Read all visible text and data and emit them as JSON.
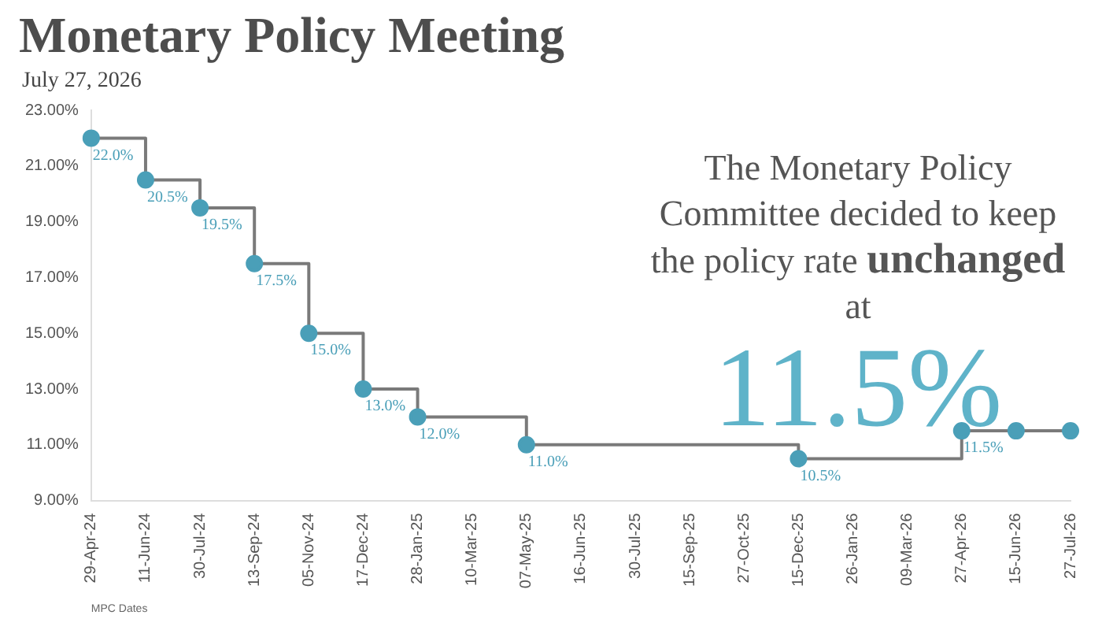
{
  "chart_data": {
    "type": "step",
    "title": "Monetary Policy Meeting",
    "subtitle": "July 27, 2026",
    "xlabel": "MPC Dates",
    "categories": [
      "29-Apr-24",
      "11-Jun-24",
      "30-Jul-24",
      "13-Sep-24",
      "05-Nov-24",
      "17-Dec-24",
      "28-Jan-25",
      "10-Mar-25",
      "07-May-25",
      "16-Jun-25",
      "30-Jul-25",
      "15-Sep-25",
      "27-Oct-25",
      "15-Dec-25",
      "26-Jan-26",
      "09-Mar-26",
      "27-Apr-26",
      "15-Jun-26",
      "27-Jul-26"
    ],
    "series": [
      {
        "color": "#4a9fb8",
        "values": [
          22.0,
          20.5,
          19.5,
          17.5,
          15.0,
          13.0,
          12.0,
          null,
          11.0,
          null,
          null,
          null,
          null,
          10.5,
          null,
          null,
          11.5,
          11.5,
          11.5
        ],
        "value_labels": [
          "22.0%",
          "20.5%",
          "19.5%",
          "17.5%",
          "15.0%",
          "13.0%",
          "12.0%",
          null,
          "11.0%",
          null,
          null,
          null,
          null,
          "10.5%",
          null,
          null,
          "11.5%",
          null,
          null
        ]
      }
    ],
    "ylim": [
      9,
      23
    ],
    "yticks": [
      {
        "value": 9,
        "label": "9.00%"
      },
      {
        "value": 11,
        "label": "11.00%"
      },
      {
        "value": 13,
        "label": "13.00%"
      },
      {
        "value": 15,
        "label": "15.00%"
      },
      {
        "value": 17,
        "label": "17.00%"
      },
      {
        "value": 19,
        "label": "19.00%"
      },
      {
        "value": 21,
        "label": "21.00%"
      },
      {
        "value": 23,
        "label": "23.00%"
      }
    ],
    "grid": false,
    "legend": false,
    "marker": "circle",
    "line_style": "solid",
    "annotations": [
      "The Monetary Policy Committee decided to keep the policy rate",
      "unchanged",
      "at",
      "11.5%"
    ]
  }
}
